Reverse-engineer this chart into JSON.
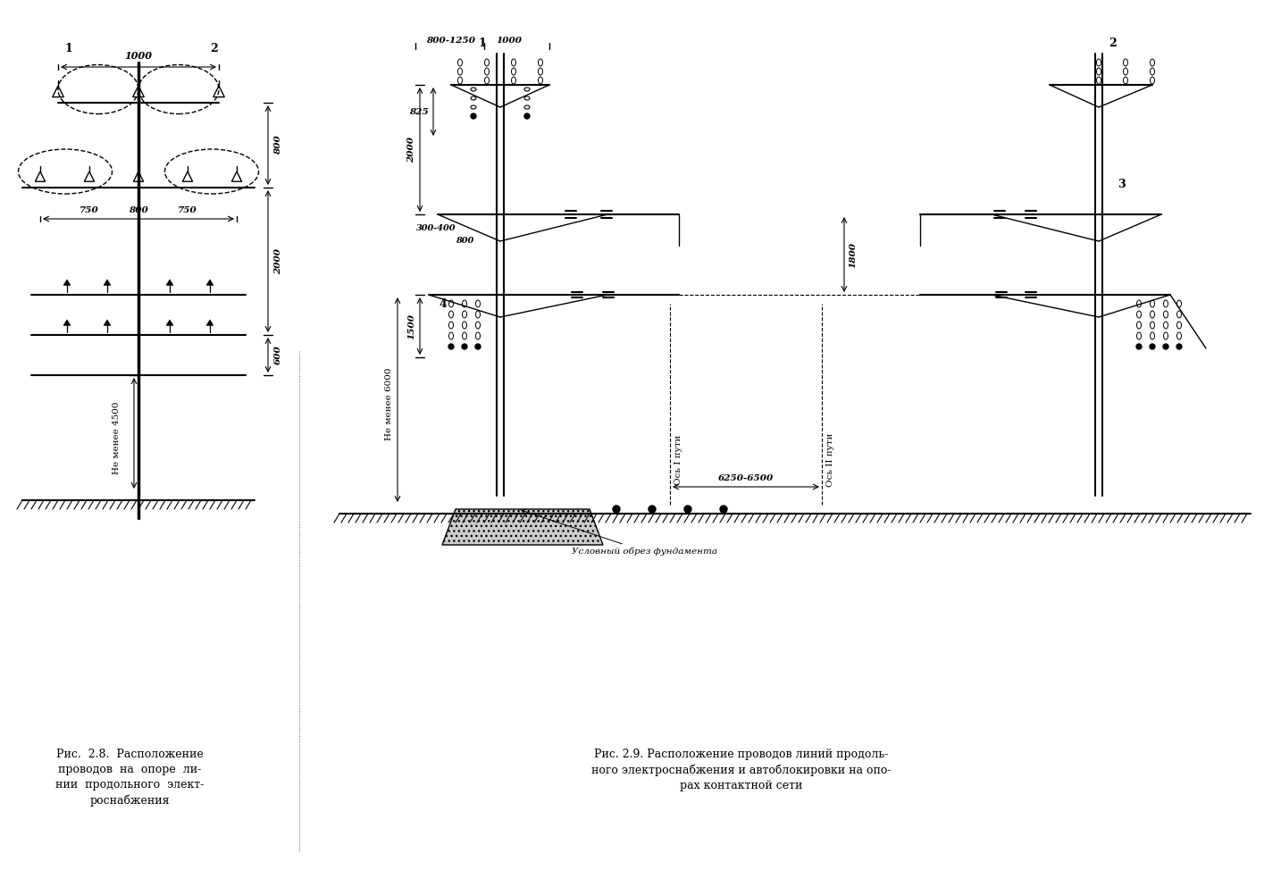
{
  "bg_color": "#ffffff",
  "line_color": "#000000",
  "caption1": "Рис.  2.8.  Расположение\nпроводов  на  опоре  ли-\nнии  продольного  элект-\nроснабжения",
  "caption2": "Рис. 2.9. Расположение проводов линий продоль-\nного электроснабжения и автоблокировки на опо-\nрах контактной сети",
  "dim1_text": "1000",
  "dim2_text": "800",
  "dim3_text": "750",
  "dim4_text": "800",
  "dim5_text": "750",
  "dim6_text": "2000",
  "dim7_text": "600",
  "dim8_text": "Не менее 4500",
  "right_dims": [
    "800-1250",
    "1000",
    "825",
    "2000",
    "300-400",
    "800",
    "1500",
    "Не менее 6000"
  ],
  "labels": [
    "1",
    "2",
    "3",
    "4"
  ],
  "axis_labels": [
    "Ось I пути",
    "6250-6500",
    "Ось II пути"
  ],
  "fund_label": "Условный обрез фундамента"
}
